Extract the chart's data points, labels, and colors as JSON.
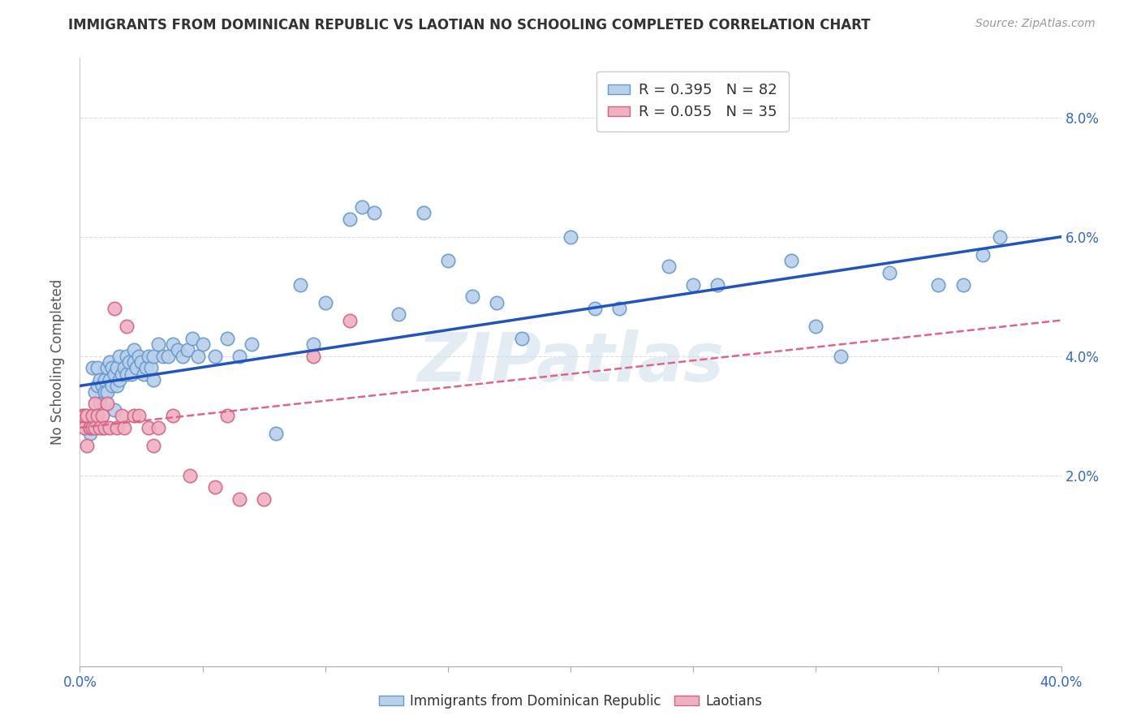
{
  "title": "IMMIGRANTS FROM DOMINICAN REPUBLIC VS LAOTIAN NO SCHOOLING COMPLETED CORRELATION CHART",
  "source": "Source: ZipAtlas.com",
  "ylabel": "No Schooling Completed",
  "xlim": [
    0.0,
    0.4
  ],
  "ylim": [
    -0.012,
    0.09
  ],
  "xtick_positions": [
    0.0,
    0.05,
    0.1,
    0.15,
    0.2,
    0.25,
    0.3,
    0.35,
    0.4
  ],
  "xtick_labels_show": [
    "0.0%",
    "",
    "",
    "",
    "",
    "",
    "",
    "",
    "40.0%"
  ],
  "ytick_positions": [
    0.02,
    0.04,
    0.06,
    0.08
  ],
  "ytick_labels": [
    "2.0%",
    "4.0%",
    "6.0%",
    "8.0%"
  ],
  "blue_R": 0.395,
  "blue_N": 82,
  "pink_R": 0.055,
  "pink_N": 35,
  "blue_color": "#b8d0ea",
  "blue_edge": "#6699cc",
  "pink_color": "#f0b0c0",
  "pink_edge": "#cc6688",
  "blue_line_color": "#2255bb",
  "pink_line_color": "#dd6688",
  "watermark": "ZIPatlas",
  "watermark_color": "#ccdde8",
  "legend_label_blue": "Immigrants from Dominican Republic",
  "legend_label_pink": "Laotians",
  "blue_line_x0": 0.0,
  "blue_line_y0": 0.035,
  "blue_line_x1": 0.4,
  "blue_line_y1": 0.06,
  "pink_line_x0": 0.0,
  "pink_line_y0": 0.028,
  "pink_line_x1": 0.4,
  "pink_line_y1": 0.046,
  "blue_x": [
    0.004,
    0.005,
    0.006,
    0.006,
    0.007,
    0.007,
    0.008,
    0.008,
    0.009,
    0.009,
    0.01,
    0.01,
    0.011,
    0.011,
    0.012,
    0.012,
    0.013,
    0.013,
    0.014,
    0.014,
    0.015,
    0.015,
    0.016,
    0.016,
    0.017,
    0.018,
    0.019,
    0.019,
    0.02,
    0.021,
    0.022,
    0.022,
    0.023,
    0.024,
    0.025,
    0.026,
    0.027,
    0.028,
    0.029,
    0.03,
    0.03,
    0.032,
    0.034,
    0.036,
    0.038,
    0.04,
    0.042,
    0.044,
    0.046,
    0.048,
    0.05,
    0.055,
    0.06,
    0.065,
    0.07,
    0.08,
    0.09,
    0.095,
    0.1,
    0.11,
    0.115,
    0.12,
    0.13,
    0.14,
    0.15,
    0.16,
    0.17,
    0.18,
    0.2,
    0.21,
    0.22,
    0.24,
    0.25,
    0.26,
    0.29,
    0.3,
    0.31,
    0.33,
    0.35,
    0.36,
    0.368,
    0.375
  ],
  "blue_y": [
    0.027,
    0.038,
    0.029,
    0.034,
    0.035,
    0.038,
    0.032,
    0.036,
    0.028,
    0.035,
    0.034,
    0.036,
    0.034,
    0.038,
    0.036,
    0.039,
    0.035,
    0.038,
    0.037,
    0.031,
    0.035,
    0.038,
    0.036,
    0.04,
    0.037,
    0.038,
    0.037,
    0.04,
    0.039,
    0.037,
    0.039,
    0.041,
    0.038,
    0.04,
    0.039,
    0.037,
    0.038,
    0.04,
    0.038,
    0.036,
    0.04,
    0.042,
    0.04,
    0.04,
    0.042,
    0.041,
    0.04,
    0.041,
    0.043,
    0.04,
    0.042,
    0.04,
    0.043,
    0.04,
    0.042,
    0.027,
    0.052,
    0.042,
    0.049,
    0.063,
    0.065,
    0.064,
    0.047,
    0.064,
    0.056,
    0.05,
    0.049,
    0.043,
    0.06,
    0.048,
    0.048,
    0.055,
    0.052,
    0.052,
    0.056,
    0.045,
    0.04,
    0.054,
    0.052,
    0.052,
    0.057,
    0.06
  ],
  "pink_x": [
    0.001,
    0.002,
    0.002,
    0.003,
    0.003,
    0.004,
    0.004,
    0.005,
    0.005,
    0.006,
    0.006,
    0.007,
    0.008,
    0.009,
    0.01,
    0.011,
    0.012,
    0.014,
    0.015,
    0.017,
    0.018,
    0.019,
    0.022,
    0.024,
    0.028,
    0.03,
    0.032,
    0.038,
    0.045,
    0.055,
    0.06,
    0.065,
    0.075,
    0.095,
    0.11
  ],
  "pink_y": [
    0.03,
    0.028,
    0.03,
    0.025,
    0.03,
    0.028,
    0.028,
    0.028,
    0.03,
    0.028,
    0.032,
    0.03,
    0.028,
    0.03,
    0.028,
    0.032,
    0.028,
    0.048,
    0.028,
    0.03,
    0.028,
    0.045,
    0.03,
    0.03,
    0.028,
    0.025,
    0.028,
    0.03,
    0.02,
    0.018,
    0.03,
    0.016,
    0.016,
    0.04,
    0.046
  ]
}
